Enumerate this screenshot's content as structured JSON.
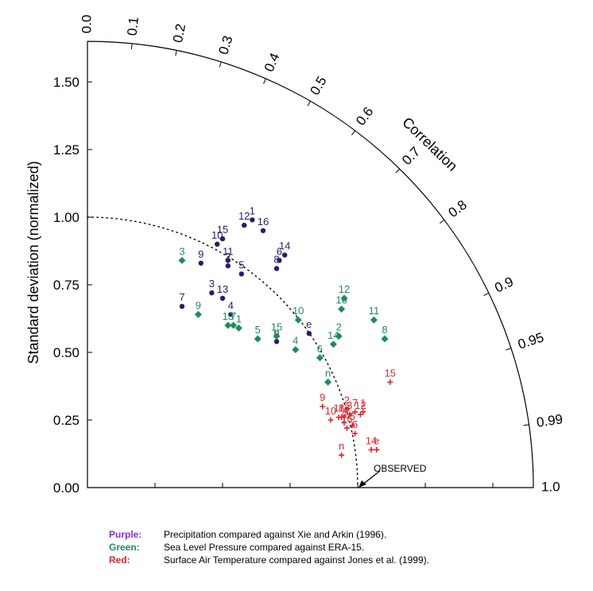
{
  "chart_data": {
    "type": "scatter",
    "subtype": "taylor-diagram",
    "ylabel": "Standard deviation (normalized)",
    "correlation_label": "Correlation",
    "reference_label": "OBSERVED",
    "std_ticks": [
      "0.00",
      "0.25",
      "0.50",
      "0.75",
      "1.00",
      "1.25",
      "1.50"
    ],
    "std_tick_values": [
      0,
      0.25,
      0.5,
      0.75,
      1.0,
      1.25,
      1.5
    ],
    "std_max": 1.65,
    "corr_ticks": [
      "0.0",
      "0.1",
      "0.2",
      "0.3",
      "0.4",
      "0.5",
      "0.6",
      "0.7",
      "0.8",
      "0.9",
      "0.95",
      "0.99",
      "1.0"
    ],
    "corr_tick_values": [
      0,
      0.1,
      0.2,
      0.3,
      0.4,
      0.5,
      0.6,
      0.7,
      0.8,
      0.9,
      0.95,
      0.99,
      1.0
    ],
    "series": [
      {
        "color": "#2d1a6e",
        "marker": "circle",
        "points": [
          {
            "label": "1",
            "x": 0.61,
            "y": 0.99
          },
          {
            "label": "2",
            "x": 0.52,
            "y": 0.82
          },
          {
            "label": "3",
            "x": 0.46,
            "y": 0.72
          },
          {
            "label": "4",
            "x": 0.53,
            "y": 0.64
          },
          {
            "label": "5",
            "x": 0.57,
            "y": 0.79
          },
          {
            "label": "6",
            "x": 0.71,
            "y": 0.84
          },
          {
            "label": "7",
            "x": 0.35,
            "y": 0.67
          },
          {
            "label": "8",
            "x": 0.7,
            "y": 0.81
          },
          {
            "label": "9",
            "x": 0.42,
            "y": 0.83
          },
          {
            "label": "10",
            "x": 0.48,
            "y": 0.9
          },
          {
            "label": "11",
            "x": 0.52,
            "y": 0.84
          },
          {
            "label": "12",
            "x": 0.58,
            "y": 0.97
          },
          {
            "label": "13",
            "x": 0.5,
            "y": 0.7
          },
          {
            "label": "14",
            "x": 0.73,
            "y": 0.86
          },
          {
            "label": "15",
            "x": 0.5,
            "y": 0.92
          },
          {
            "label": "16",
            "x": 0.65,
            "y": 0.95
          },
          {
            "label": "e",
            "x": 0.82,
            "y": 0.57
          },
          {
            "label": "n",
            "x": 0.7,
            "y": 0.54
          }
        ]
      },
      {
        "color": "#1e8c5a",
        "marker": "diamond",
        "points": [
          {
            "label": "1",
            "x": 0.56,
            "y": 0.59
          },
          {
            "label": "2",
            "x": 0.93,
            "y": 0.56
          },
          {
            "label": "3",
            "x": 0.35,
            "y": 0.84
          },
          {
            "label": "4",
            "x": 0.77,
            "y": 0.51
          },
          {
            "label": "5",
            "x": 0.63,
            "y": 0.55
          },
          {
            "label": "6",
            "x": 0.86,
            "y": 0.48
          },
          {
            "label": "7",
            "x": 0.54,
            "y": 0.6
          },
          {
            "label": "8",
            "x": 1.1,
            "y": 0.55
          },
          {
            "label": "9",
            "x": 0.41,
            "y": 0.64
          },
          {
            "label": "10",
            "x": 0.78,
            "y": 0.62
          },
          {
            "label": "11",
            "x": 1.06,
            "y": 0.62
          },
          {
            "label": "12",
            "x": 0.95,
            "y": 0.7
          },
          {
            "label": "13",
            "x": 0.52,
            "y": 0.6
          },
          {
            "label": "14",
            "x": 0.91,
            "y": 0.53
          },
          {
            "label": "15",
            "x": 0.7,
            "y": 0.56
          },
          {
            "label": "16",
            "x": 0.94,
            "y": 0.66
          },
          {
            "label": "n",
            "x": 0.89,
            "y": 0.39
          }
        ]
      },
      {
        "color": "#e0262b",
        "marker": "plus",
        "points": [
          {
            "label": "1",
            "x": 1.02,
            "y": 0.28
          },
          {
            "label": "2",
            "x": 0.96,
            "y": 0.29
          },
          {
            "label": "3",
            "x": 0.97,
            "y": 0.27
          },
          {
            "label": "4",
            "x": 0.95,
            "y": 0.24
          },
          {
            "label": "5",
            "x": 0.98,
            "y": 0.23
          },
          {
            "label": "6",
            "x": 0.99,
            "y": 0.2
          },
          {
            "label": "7",
            "x": 0.99,
            "y": 0.28
          },
          {
            "label": "8",
            "x": 0.94,
            "y": 0.26
          },
          {
            "label": "9",
            "x": 0.87,
            "y": 0.3
          },
          {
            "label": "10",
            "x": 0.9,
            "y": 0.25
          },
          {
            "label": "11",
            "x": 0.93,
            "y": 0.26
          },
          {
            "label": "12",
            "x": 1.01,
            "y": 0.27
          },
          {
            "label": "13",
            "x": 0.95,
            "y": 0.26
          },
          {
            "label": "14",
            "x": 1.05,
            "y": 0.14
          },
          {
            "label": "15",
            "x": 1.12,
            "y": 0.39
          },
          {
            "label": "16",
            "x": 0.96,
            "y": 0.22
          },
          {
            "label": "e",
            "x": 1.07,
            "y": 0.14
          },
          {
            "label": "n",
            "x": 0.94,
            "y": 0.12
          }
        ]
      }
    ]
  },
  "legend": [
    {
      "key": "Purple:",
      "text": "Precipitation compared against Xie and Arkin (1996).",
      "color": "#8a2be2"
    },
    {
      "key": "Green:",
      "text": "Sea Level Pressure compared against ERA-15.",
      "color": "#1e8c5a"
    },
    {
      "key": "Red:",
      "text": "Surface Air Temperature compared against Jones et al. (1999).",
      "color": "#e0262b"
    }
  ]
}
